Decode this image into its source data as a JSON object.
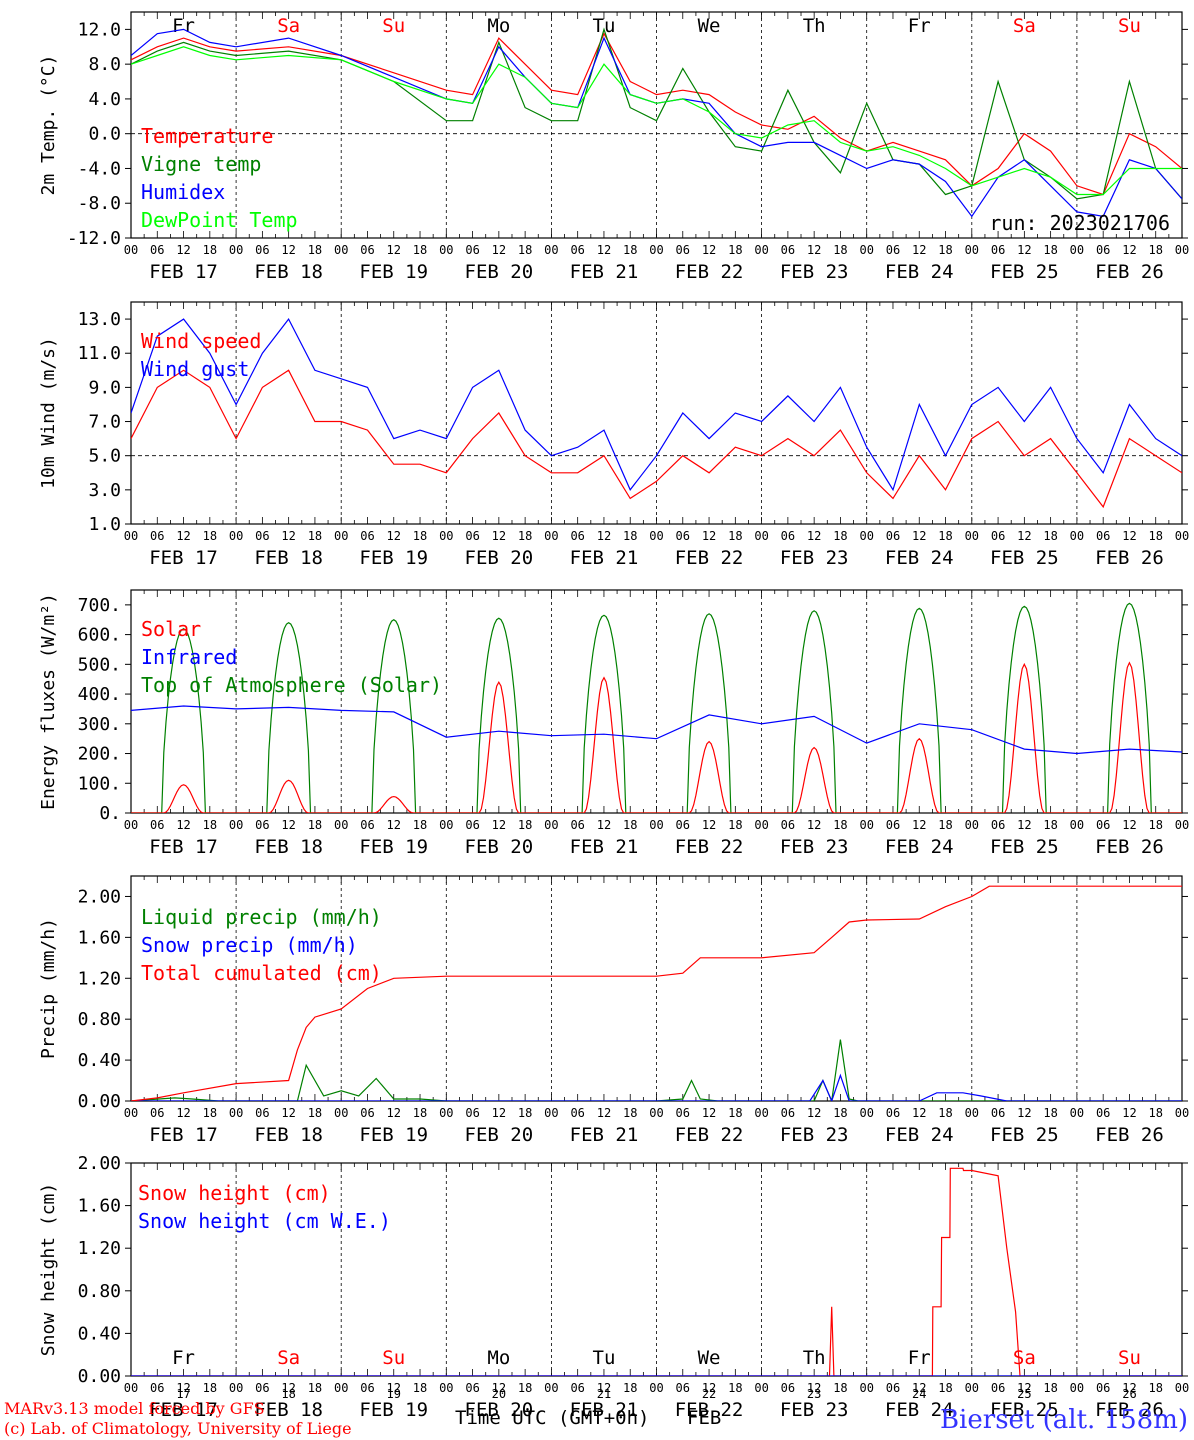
{
  "colors": {
    "red": "#ff0000",
    "green": "#008000",
    "blue": "#0000ff",
    "lime": "#00ff00",
    "black": "#000000"
  },
  "run_label": "run: 2023021706",
  "hour_ticks": [
    "00",
    "06",
    "12",
    "18"
  ],
  "dates": [
    "FEB 17",
    "FEB 18",
    "FEB 19",
    "FEB 20",
    "FEB 21",
    "FEB 22",
    "FEB 23",
    "FEB 24",
    "FEB 25",
    "FEB 26"
  ],
  "days": [
    {
      "label": "Fr",
      "weekend": false
    },
    {
      "label": "Sa",
      "weekend": true
    },
    {
      "label": "Su",
      "weekend": true
    },
    {
      "label": "Mo",
      "weekend": false
    },
    {
      "label": "Tu",
      "weekend": false
    },
    {
      "label": "We",
      "weekend": false
    },
    {
      "label": "Th",
      "weekend": false
    },
    {
      "label": "Fr",
      "weekend": false
    },
    {
      "label": "Sa",
      "weekend": true
    },
    {
      "label": "Su",
      "weekend": true
    }
  ],
  "day_numbers": [
    "17",
    "18",
    "19",
    "20",
    "21",
    "22",
    "23",
    "24",
    "25",
    "26"
  ],
  "footer": {
    "model": "MARv3.13 model forced by GFS",
    "lab": "(c) Lab. of Climatology, University of Liege",
    "axis_title": "Time UTC (GMT+0h)",
    "month": "FEB",
    "station": "Bierset (alt. 158m)"
  },
  "chart_data": [
    {
      "type": "line",
      "ylabel": "2m Temp. (°C)",
      "ylim": [
        -12,
        14
      ],
      "yticks": [
        "12.0",
        "8.0",
        "4.0",
        "0.0",
        "-4.0",
        "-8.0",
        "-12.0"
      ],
      "ytick_values": [
        12,
        8,
        4,
        0,
        -4,
        -8,
        -12
      ],
      "ref_line": 0,
      "x_unit": "hours since FEB 17 00 UTC",
      "series": [
        {
          "name": "Temperature",
          "color": "#ff0000",
          "x": [
            0,
            6,
            12,
            18,
            24,
            36,
            48,
            60,
            72,
            78,
            84,
            90,
            96,
            102,
            108,
            114,
            120,
            126,
            132,
            138,
            144,
            150,
            156,
            162,
            168,
            174,
            180,
            186,
            192,
            198,
            204,
            210,
            216,
            222,
            228,
            234,
            240
          ],
          "y": [
            8.5,
            10,
            11,
            10,
            9.5,
            10,
            9,
            7,
            5,
            4.5,
            11,
            8,
            5,
            4.5,
            11.5,
            6,
            4.5,
            5,
            4.5,
            2.5,
            1,
            0.5,
            2,
            -0.5,
            -2,
            -1,
            -2,
            -3,
            -6,
            -4,
            0,
            -2,
            -6,
            -7,
            0,
            -1.5,
            -4
          ]
        },
        {
          "name": "Vigne temp",
          "color": "#008000",
          "x": [
            0,
            6,
            12,
            18,
            24,
            36,
            48,
            60,
            72,
            78,
            84,
            90,
            96,
            102,
            108,
            114,
            120,
            126,
            132,
            138,
            144,
            150,
            156,
            162,
            168,
            174,
            180,
            186,
            192,
            198,
            204,
            210,
            216,
            222,
            228,
            234,
            240
          ],
          "y": [
            8,
            9.5,
            10.5,
            9.5,
            9,
            9.5,
            8.5,
            6,
            1.5,
            1.5,
            10.5,
            3,
            1.5,
            1.5,
            12,
            3,
            1.5,
            7.5,
            2.5,
            -1.5,
            -2,
            5,
            -1,
            -4.5,
            3.5,
            -3,
            -3.5,
            -7,
            -6,
            6,
            -3,
            -5,
            -7.5,
            -7,
            6,
            -4,
            -7.5
          ]
        },
        {
          "name": "Humidex",
          "color": "#0000ff",
          "x": [
            0,
            6,
            12,
            18,
            24,
            36,
            48,
            60,
            72,
            78,
            84,
            90,
            96,
            102,
            108,
            114,
            120,
            126,
            132,
            138,
            144,
            150,
            156,
            162,
            168,
            174,
            180,
            186,
            192,
            198,
            204,
            210,
            216,
            222,
            228,
            234,
            240
          ],
          "y": [
            9,
            11.5,
            12,
            10.5,
            10,
            11,
            9,
            6.5,
            4,
            3.5,
            10,
            6.5,
            3.5,
            3,
            11,
            4.5,
            3.5,
            4,
            3.5,
            0,
            -1.5,
            -1,
            -1,
            -2.5,
            -4,
            -3,
            -3.5,
            -5.5,
            -9.5,
            -5,
            -3,
            -6,
            -9,
            -9.5,
            -3,
            -4,
            -7.5
          ]
        },
        {
          "name": "DewPoint Temp",
          "color": "#00ff00",
          "x": [
            0,
            6,
            12,
            18,
            24,
            36,
            48,
            60,
            72,
            78,
            84,
            90,
            96,
            102,
            108,
            114,
            120,
            126,
            132,
            138,
            144,
            150,
            156,
            162,
            168,
            174,
            180,
            186,
            192,
            198,
            204,
            210,
            216,
            222,
            228,
            234,
            240
          ],
          "y": [
            8,
            9,
            10,
            9,
            8.5,
            9,
            8.5,
            6,
            4,
            3.5,
            8,
            6.5,
            3.5,
            3,
            8,
            4.5,
            3.5,
            4,
            2.5,
            0,
            -0.5,
            1,
            1.5,
            -1,
            -2,
            -1.5,
            -2.5,
            -4,
            -6,
            -5,
            -4,
            -5,
            -7,
            -7,
            -4,
            -4,
            -4
          ]
        }
      ]
    },
    {
      "type": "line",
      "ylabel": "10m Wind (m/s)",
      "ylim": [
        1,
        14
      ],
      "yticks": [
        "13.0",
        "11.0",
        "9.0",
        "7.0",
        "5.0",
        "3.0",
        "1.0"
      ],
      "ytick_values": [
        13,
        11,
        9,
        7,
        5,
        3,
        1
      ],
      "ref_line": 5,
      "x_unit": "hours since FEB 17 00 UTC",
      "series": [
        {
          "name": "Wind speed",
          "color": "#ff0000",
          "x": [
            0,
            6,
            12,
            18,
            24,
            30,
            36,
            42,
            48,
            54,
            60,
            66,
            72,
            78,
            84,
            90,
            96,
            102,
            108,
            114,
            120,
            126,
            132,
            138,
            144,
            150,
            156,
            162,
            168,
            174,
            180,
            186,
            192,
            198,
            204,
            210,
            216,
            222,
            228,
            234,
            240
          ],
          "y": [
            6,
            9,
            10,
            9,
            6,
            9,
            10,
            7,
            7,
            6.5,
            4.5,
            4.5,
            4,
            6,
            7.5,
            5,
            4,
            4,
            5,
            2.5,
            3.5,
            5,
            4,
            5.5,
            5,
            6,
            5,
            6.5,
            4,
            2.5,
            5,
            3,
            6,
            7,
            5,
            6,
            4,
            2,
            6,
            5,
            4
          ]
        },
        {
          "name": "Wind gust",
          "color": "#0000ff",
          "x": [
            0,
            6,
            12,
            18,
            24,
            30,
            36,
            42,
            48,
            54,
            60,
            66,
            72,
            78,
            84,
            90,
            96,
            102,
            108,
            114,
            120,
            126,
            132,
            138,
            144,
            150,
            156,
            162,
            168,
            174,
            180,
            186,
            192,
            198,
            204,
            210,
            216,
            222,
            228,
            234,
            240
          ],
          "y": [
            7.5,
            12,
            13,
            11,
            8,
            11,
            13,
            10,
            9.5,
            9,
            6,
            6.5,
            6,
            9,
            10,
            6.5,
            5,
            5.5,
            6.5,
            3,
            5,
            7.5,
            6,
            7.5,
            7,
            8.5,
            7,
            9,
            5.5,
            3,
            8,
            5,
            8,
            9,
            7,
            9,
            6,
            4,
            8,
            6,
            5
          ]
        }
      ]
    },
    {
      "type": "line",
      "ylabel": "Energy fluxes (W/m²)",
      "ylim": [
        0,
        750
      ],
      "yticks": [
        "700.",
        "600.",
        "500.",
        "400.",
        "300.",
        "200.",
        "100.",
        "0."
      ],
      "ytick_values": [
        700,
        600,
        500,
        400,
        300,
        200,
        100,
        0
      ],
      "x_unit": "hours since FEB 17 00 UTC",
      "toa_peaks": [
        620,
        640,
        650,
        655,
        665,
        670,
        680,
        688,
        695,
        705
      ],
      "solar_peaks": [
        95,
        110,
        55,
        440,
        455,
        240,
        220,
        250,
        500,
        505
      ],
      "series": [
        {
          "name": "Solar",
          "color": "#ff0000"
        },
        {
          "name": "Infrared",
          "color": "#0000ff",
          "x": [
            0,
            12,
            24,
            36,
            48,
            60,
            72,
            84,
            96,
            108,
            120,
            132,
            144,
            156,
            168,
            180,
            192,
            204,
            216,
            228,
            240
          ],
          "y": [
            345,
            360,
            350,
            355,
            345,
            340,
            255,
            275,
            260,
            265,
            250,
            330,
            300,
            325,
            235,
            300,
            280,
            215,
            200,
            215,
            205
          ]
        },
        {
          "name": "Top of Atmosphere (Solar)",
          "color": "#008000"
        }
      ]
    },
    {
      "type": "line",
      "ylabel": "Precip (mm/h)",
      "ylim": [
        0,
        2.2
      ],
      "yticks": [
        "2.00",
        "1.60",
        "1.20",
        "0.80",
        "0.40",
        "0.00"
      ],
      "ytick_values": [
        2.0,
        1.6,
        1.2,
        0.8,
        0.4,
        0.0
      ],
      "x_unit": "hours since FEB 17 00 UTC",
      "series": [
        {
          "name": "Liquid precip (mm/h)",
          "color": "#008000",
          "x": [
            0,
            10,
            14,
            20,
            28,
            38,
            40,
            44,
            48,
            52,
            56,
            60,
            66,
            72,
            120,
            126,
            128,
            130,
            134,
            156,
            158,
            160,
            162,
            164,
            166,
            168,
            200,
            240
          ],
          "y": [
            0,
            0.03,
            0.02,
            0,
            0,
            0,
            0.35,
            0.05,
            0.1,
            0.05,
            0.22,
            0.02,
            0.02,
            0,
            0,
            0.02,
            0.2,
            0.02,
            0,
            0,
            0.2,
            0,
            0.6,
            0.02,
            0,
            0,
            0,
            0
          ]
        },
        {
          "name": "Snow precip (mm/h)",
          "color": "#0000ff",
          "x": [
            0,
            150,
            155,
            158,
            160,
            162,
            164,
            166,
            168,
            180,
            184,
            190,
            194,
            200,
            240
          ],
          "y": [
            0,
            0,
            0,
            0.2,
            0,
            0.25,
            0,
            0,
            0,
            0,
            0.08,
            0.08,
            0.05,
            0,
            0
          ]
        },
        {
          "name": "Total cumulated (cm)",
          "color": "#ff0000",
          "x": [
            0,
            6,
            12,
            24,
            36,
            38,
            40,
            42,
            48,
            54,
            60,
            72,
            96,
            120,
            126,
            130,
            144,
            156,
            160,
            164,
            168,
            180,
            186,
            192,
            196,
            200,
            240
          ],
          "y": [
            0,
            0.03,
            0.08,
            0.17,
            0.2,
            0.5,
            0.72,
            0.82,
            0.9,
            1.1,
            1.2,
            1.22,
            1.22,
            1.22,
            1.25,
            1.4,
            1.4,
            1.45,
            1.6,
            1.75,
            1.77,
            1.78,
            1.9,
            2.0,
            2.1,
            2.1,
            2.1
          ]
        }
      ]
    },
    {
      "type": "line",
      "ylabel": "Snow height (cm)",
      "ylim": [
        0,
        2.0
      ],
      "yticks": [
        "2.00",
        "1.60",
        "1.20",
        "0.80",
        "0.40",
        "0.00"
      ],
      "ytick_values": [
        2.0,
        1.6,
        1.2,
        0.8,
        0.4,
        0.0
      ],
      "x_unit": "hours since FEB 17 00 UTC",
      "series": [
        {
          "name": "Snow height (cm)",
          "color": "#ff0000",
          "x": [
            0,
            159.5,
            160,
            160.5,
            183,
            183.1,
            185,
            185.1,
            187,
            187.1,
            190,
            190.1,
            192,
            198,
            200,
            202,
            203,
            204,
            240
          ],
          "y": [
            0,
            0,
            0.65,
            0,
            0,
            0.65,
            0.65,
            1.3,
            1.3,
            1.95,
            1.95,
            1.93,
            1.93,
            1.88,
            1.2,
            0.6,
            0,
            0,
            0
          ]
        },
        {
          "name": "Snow height (cm W.E.)",
          "color": "#0000ff",
          "x": [
            0,
            240
          ],
          "y": [
            0,
            0
          ]
        }
      ]
    }
  ]
}
